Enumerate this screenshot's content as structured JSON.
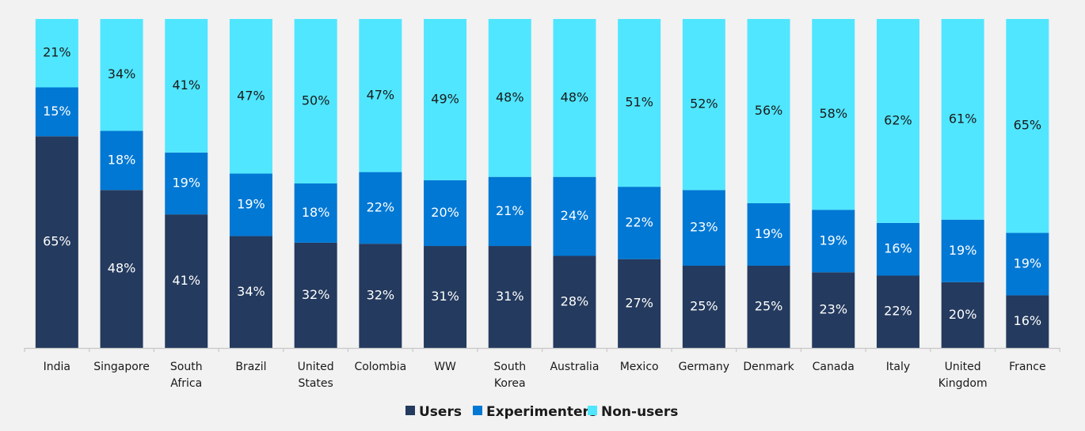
{
  "chart_data": {
    "type": "bar",
    "stacked": true,
    "title": "",
    "xlabel": "",
    "ylabel": "",
    "ylim": [
      0,
      100
    ],
    "grid": false,
    "legend_position": "bottom-center",
    "categories": [
      [
        "India"
      ],
      [
        "Singapore"
      ],
      [
        "South",
        "Africa"
      ],
      [
        "Brazil"
      ],
      [
        "United",
        "States"
      ],
      [
        "Colombia"
      ],
      [
        "WW"
      ],
      [
        "South",
        "Korea"
      ],
      [
        "Australia"
      ],
      [
        "Mexico"
      ],
      [
        "Germany"
      ],
      [
        "Denmark"
      ],
      [
        "Canada"
      ],
      [
        "Italy"
      ],
      [
        "United",
        "Kingdom"
      ],
      [
        "France"
      ]
    ],
    "series": [
      {
        "name": "Users",
        "color": "#243a5e",
        "label_color": "#ffffff",
        "values": [
          65,
          48,
          41,
          34,
          32,
          32,
          31,
          31,
          28,
          27,
          25,
          25,
          23,
          22,
          20,
          16
        ]
      },
      {
        "name": "Experimenters",
        "color": "#0078d4",
        "label_color": "#ffffff",
        "values": [
          15,
          18,
          19,
          19,
          18,
          22,
          20,
          21,
          24,
          22,
          23,
          19,
          19,
          16,
          19,
          19
        ]
      },
      {
        "name": "Non-users",
        "color": "#50e6ff",
        "label_color": "#1a1a1a",
        "values": [
          21,
          34,
          41,
          47,
          50,
          47,
          49,
          48,
          48,
          51,
          52,
          56,
          58,
          62,
          61,
          65
        ]
      }
    ],
    "value_suffix": "%"
  }
}
